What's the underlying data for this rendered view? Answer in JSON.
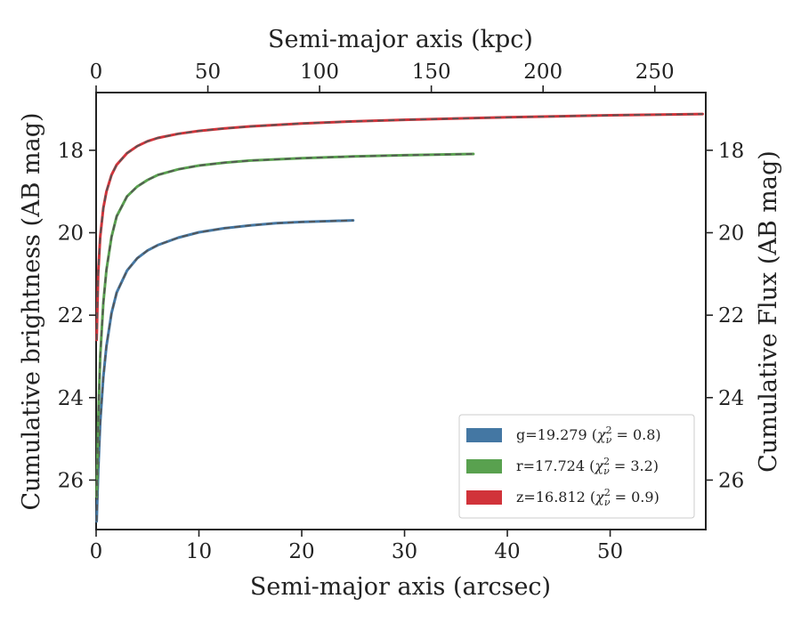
{
  "chart_data": {
    "type": "line",
    "xlabel": "Semi-major axis (arcsec)",
    "xlim": [
      0,
      59.3
    ],
    "xticks": [
      0,
      10,
      20,
      30,
      40,
      50
    ],
    "x2label": "Semi-major axis (kpc)",
    "x2lim": [
      0,
      272.8
    ],
    "x2ticks": [
      0,
      50,
      100,
      150,
      200,
      250
    ],
    "ylabel": "Cumulative brightness (AB mag)",
    "y2label": "Cumulative Flux (AB mag)",
    "ylim": [
      27.2,
      16.6
    ],
    "yticks": [
      18,
      20,
      22,
      24,
      26
    ],
    "y_inverted": true,
    "grid": false,
    "legend_position": "lower-right",
    "series": [
      {
        "name": "g",
        "label_prefix": "g=19.279 (",
        "label_suffix": ")",
        "chi": "χ",
        "chi_sub": "ν",
        "chi_sup": "2",
        "chi_value": " = 0.8",
        "color": "#4477a3",
        "x": [
          0.05,
          0.2,
          0.4,
          0.7,
          1.0,
          1.5,
          2.0,
          3.0,
          4.0,
          5.0,
          6.0,
          8.0,
          10.0,
          12.5,
          15.0,
          17.5,
          20.0,
          22.5,
          25.0
        ],
        "y": [
          27.0,
          25.8,
          24.6,
          23.5,
          22.75,
          21.95,
          21.45,
          20.92,
          20.62,
          20.43,
          20.3,
          20.12,
          19.99,
          19.89,
          19.82,
          19.77,
          19.74,
          19.72,
          19.7
        ]
      },
      {
        "name": "r",
        "label_prefix": "r=17.724 (",
        "label_suffix": ")",
        "chi": "χ",
        "chi_sub": "ν",
        "chi_sup": "2",
        "chi_value": " = 3.2",
        "color": "#59a14f",
        "x": [
          0.05,
          0.2,
          0.4,
          0.7,
          1.0,
          1.5,
          2.0,
          3.0,
          4.0,
          5.0,
          6.0,
          8.0,
          10.0,
          12.5,
          15.0,
          20.0,
          25.0,
          30.0,
          36.7
        ],
        "y": [
          26.4,
          24.6,
          23.0,
          21.7,
          20.9,
          20.1,
          19.6,
          19.12,
          18.88,
          18.72,
          18.6,
          18.46,
          18.37,
          18.3,
          18.25,
          18.19,
          18.15,
          18.12,
          18.09
        ]
      },
      {
        "name": "z",
        "label_prefix": "z=16.812 (",
        "label_suffix": ")",
        "chi": "χ",
        "chi_sub": "ν",
        "chi_sup": "2",
        "chi_value": " = 0.9",
        "color": "#d1333a",
        "x": [
          0.05,
          0.2,
          0.4,
          0.7,
          1.0,
          1.5,
          2.0,
          3.0,
          4.0,
          5.0,
          6.0,
          8.0,
          10.0,
          12.5,
          15.0,
          20.0,
          25.0,
          30.0,
          40.0,
          50.0,
          59.0
        ],
        "y": [
          22.6,
          21.0,
          20.1,
          19.4,
          19.0,
          18.6,
          18.35,
          18.07,
          17.9,
          17.78,
          17.7,
          17.6,
          17.53,
          17.47,
          17.42,
          17.35,
          17.3,
          17.26,
          17.2,
          17.15,
          17.12
        ]
      }
    ]
  }
}
